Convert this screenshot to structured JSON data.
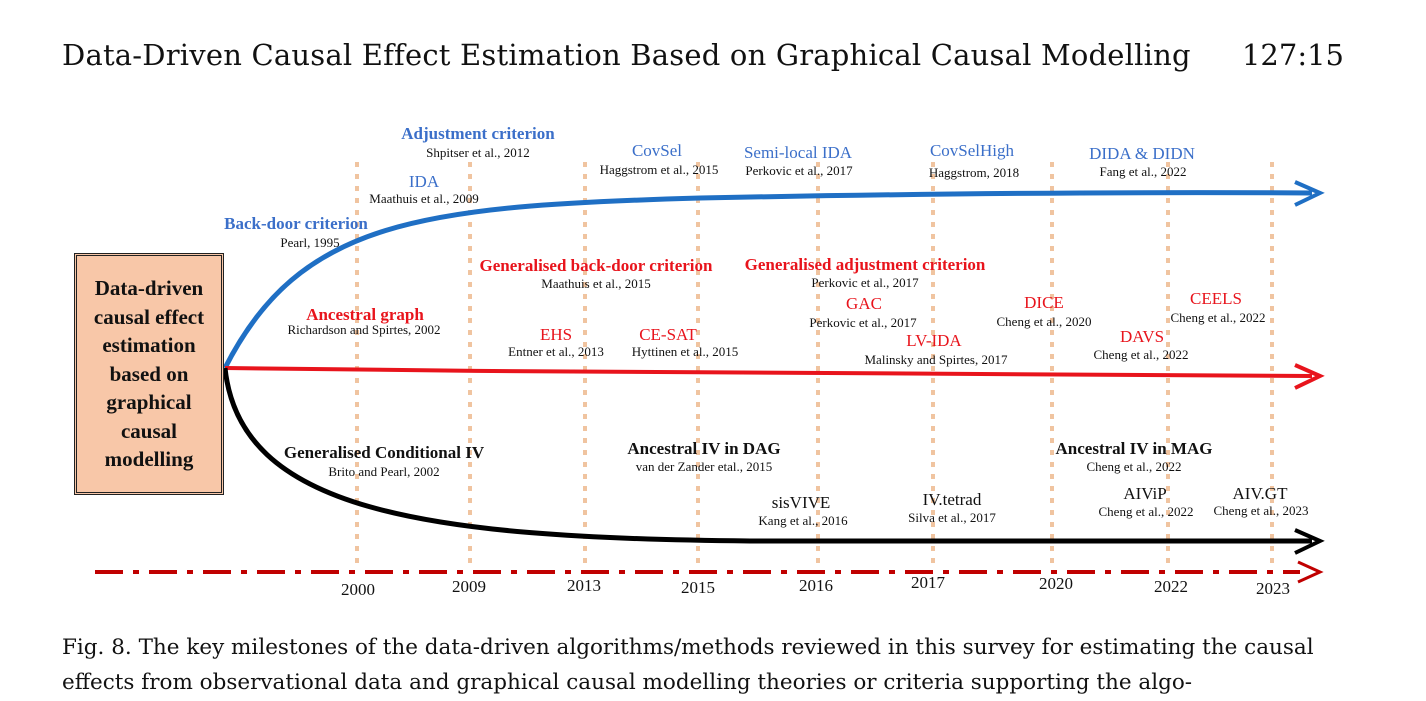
{
  "header": {
    "title": "Data-Driven Causal Effect Estimation Based on Graphical Causal Modelling",
    "page": "127:15"
  },
  "colors": {
    "blue": "#1f6fc4",
    "blue_text": "#3b6fc9",
    "red": "#e8141c",
    "black": "#000000",
    "dashed_axis": "#c00000",
    "year_line": "#f0c4a0",
    "box_fill": "#f8c7a8"
  },
  "origin_box": {
    "label": "Data-driven\ncausal effect\nestimation\nbased on\ngraphical\ncausal\nmodelling"
  },
  "years": [
    "2000",
    "2009",
    "2013",
    "2015",
    "2016",
    "2017",
    "2020",
    "2022",
    "2023"
  ],
  "milestones": {
    "blue": [
      {
        "name": "Back-door criterion",
        "cite": "Pearl, 1995",
        "bold": true
      },
      {
        "name": "IDA",
        "cite": "Maathuis et al., 2009",
        "bold": false
      },
      {
        "name": "Adjustment criterion",
        "cite": "Shpitser et al., 2012",
        "bold": true
      },
      {
        "name": "CovSel",
        "cite": "Haggstrom et al., 2015",
        "bold": false
      },
      {
        "name": "Semi-local IDA",
        "cite": "Perkovic et al., 2017",
        "bold": false
      },
      {
        "name": "CovSelHigh",
        "cite": "Haggstrom, 2018",
        "bold": false
      },
      {
        "name": "DIDA & DIDN",
        "cite": "Fang et al., 2022",
        "bold": false
      }
    ],
    "red": [
      {
        "name": "Ancestral graph",
        "cite": "Richardson and Spirtes, 2002",
        "bold": true
      },
      {
        "name": "Generalised back-door criterion",
        "cite": "Maathuis et al., 2015",
        "bold": true
      },
      {
        "name": "EHS",
        "cite": "Entner et al., 2013",
        "bold": false
      },
      {
        "name": "CE-SAT",
        "cite": "Hyttinen et al., 2015",
        "bold": false
      },
      {
        "name": "Generalised adjustment criterion",
        "cite": "Perkovic et al., 2017",
        "bold": true
      },
      {
        "name": "GAC",
        "cite": "Perkovic et al., 2017",
        "bold": false
      },
      {
        "name": "LV-IDA",
        "cite": "Malinsky and Spirtes, 2017",
        "bold": false
      },
      {
        "name": "DICE",
        "cite": "Cheng et al., 2020",
        "bold": false
      },
      {
        "name": "DAVS",
        "cite": "Cheng et al., 2022",
        "bold": false
      },
      {
        "name": "CEELS",
        "cite": "Cheng et al., 2022",
        "bold": false
      }
    ],
    "black": [
      {
        "name": "Generalised Conditional IV",
        "cite": "Brito and Pearl, 2002",
        "bold": true
      },
      {
        "name": "Ancestral IV in DAG",
        "cite": "van der Zander etal., 2015",
        "bold": true
      },
      {
        "name": "sisVIVE",
        "cite": "Kang et al., 2016",
        "bold": false
      },
      {
        "name": "IV.tetrad",
        "cite": "Silva et al., 2017",
        "bold": false
      },
      {
        "name": "Ancestral IV in MAG",
        "cite": "Cheng et al., 2022",
        "bold": true
      },
      {
        "name": "AIViP",
        "cite": "Cheng et al., 2022",
        "bold": false
      },
      {
        "name": "AIV.GT",
        "cite": "Cheng et al., 2023",
        "bold": false
      }
    ]
  },
  "caption": "Fig. 8.  The key milestones of the data-driven algorithms/methods reviewed in this survey for estimating the causal effects from observational data and graphical causal modelling theories or criteria supporting the algo-"
}
